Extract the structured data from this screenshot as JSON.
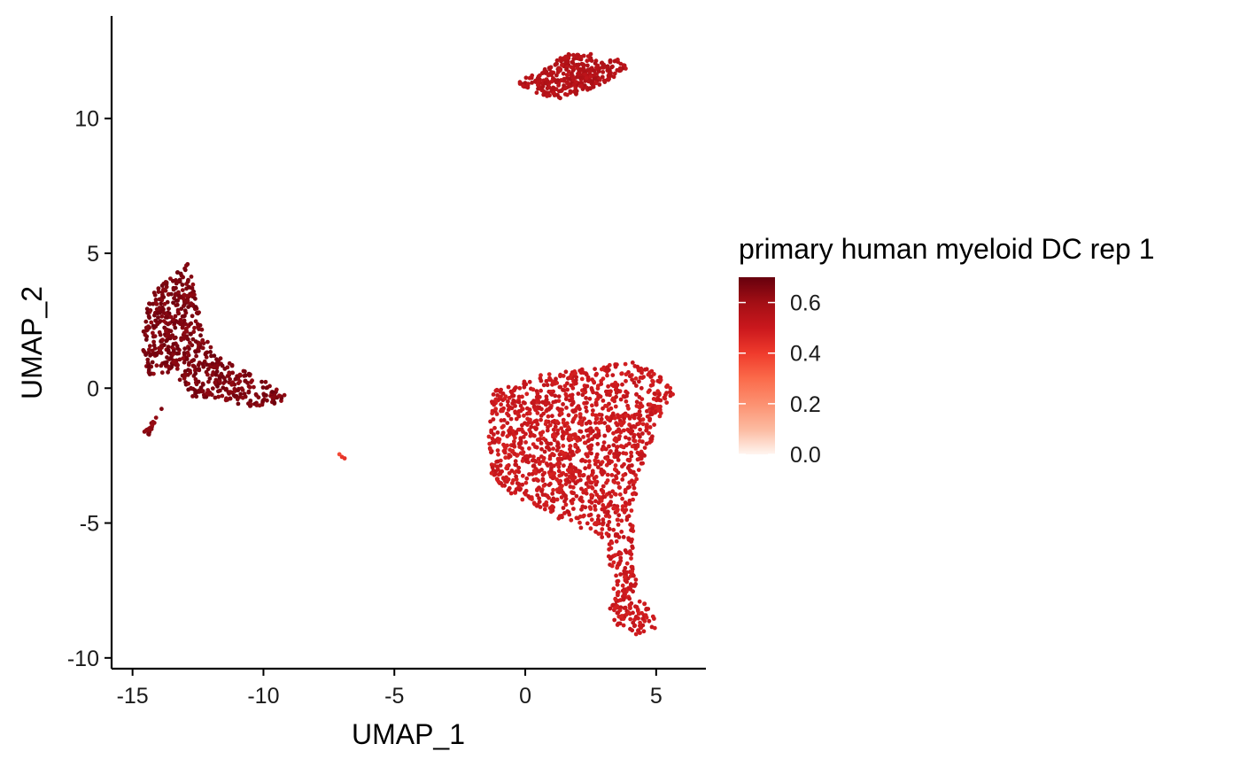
{
  "chart_data": {
    "type": "scatter",
    "title": "",
    "xlabel": "UMAP_1",
    "ylabel": "UMAP_2",
    "xlim": [
      -15.8,
      6.9
    ],
    "ylim": [
      -10.4,
      13.8
    ],
    "x_ticks": [
      -15,
      -10,
      -5,
      0,
      5
    ],
    "x_tick_labels": [
      "-15",
      "-10",
      "-5",
      "0",
      "5"
    ],
    "y_ticks": [
      -10,
      -5,
      0,
      5,
      10
    ],
    "y_tick_labels": [
      "-10",
      "-5",
      "0",
      "5",
      "10"
    ],
    "grid": false,
    "legend": {
      "title": "primary human myeloid DC rep 1",
      "placement": "right",
      "type": "colorbar",
      "range": [
        0.0,
        0.7
      ],
      "ticks": [
        0.0,
        0.2,
        0.4,
        0.6
      ],
      "tick_labels": [
        "0.0",
        "0.2",
        "0.4",
        "0.6"
      ],
      "colors": [
        "#fff5f0",
        "#fcbba1",
        "#fc9272",
        "#fb6a4a",
        "#ef3b2c",
        "#cb181d",
        "#a50f15",
        "#67000d"
      ]
    },
    "clusters": [
      {
        "description": "top cluster",
        "approx_cells": 350,
        "value": 0.56,
        "outline": [
          [
            -0.4,
            11.3
          ],
          [
            0.6,
            11.8
          ],
          [
            1.6,
            12.4
          ],
          [
            2.6,
            12.4
          ],
          [
            3.5,
            12.2
          ],
          [
            4.0,
            11.9
          ],
          [
            3.2,
            11.4
          ],
          [
            2.0,
            10.9
          ],
          [
            1.1,
            10.7
          ],
          [
            0.3,
            11.0
          ]
        ]
      },
      {
        "description": "left cluster",
        "approx_cells": 600,
        "value": 0.66,
        "outline": [
          [
            -14.6,
            2.5
          ],
          [
            -14.2,
            3.6
          ],
          [
            -13.4,
            4.2
          ],
          [
            -12.9,
            4.6
          ],
          [
            -12.5,
            3.4
          ],
          [
            -12.3,
            2.0
          ],
          [
            -11.8,
            1.2
          ],
          [
            -11.2,
            1.0
          ],
          [
            -10.6,
            0.6
          ],
          [
            -9.6,
            0.2
          ],
          [
            -9.1,
            -0.2
          ],
          [
            -9.4,
            -0.6
          ],
          [
            -10.6,
            -0.7
          ],
          [
            -11.8,
            -0.4
          ],
          [
            -12.8,
            -0.3
          ],
          [
            -13.4,
            0.6
          ],
          [
            -14.4,
            0.5
          ],
          [
            -14.6,
            1.3
          ]
        ]
      },
      {
        "description": "left cluster tail",
        "approx_cells": 20,
        "value": 0.64,
        "outline": [
          [
            -14.6,
            -1.6
          ],
          [
            -14.2,
            -1.2
          ],
          [
            -13.7,
            -0.5
          ],
          [
            -13.9,
            -0.7
          ],
          [
            -14.4,
            -1.8
          ]
        ]
      },
      {
        "description": "isolated cells",
        "approx_cells": 3,
        "value": 0.4,
        "points": [
          [
            -7.1,
            -2.45
          ],
          [
            -7.0,
            -2.55
          ],
          [
            -6.9,
            -2.6
          ]
        ]
      },
      {
        "description": "large lower-right cluster",
        "approx_cells": 1500,
        "value": 0.5,
        "outline": [
          [
            -1.4,
            -1.0
          ],
          [
            -1.2,
            -0.1
          ],
          [
            0.2,
            0.4
          ],
          [
            1.6,
            0.7
          ],
          [
            2.6,
            0.7
          ],
          [
            3.4,
            0.9
          ],
          [
            4.1,
            1.1
          ],
          [
            4.6,
            0.8
          ],
          [
            5.4,
            0.3
          ],
          [
            5.8,
            -0.2
          ],
          [
            5.2,
            -0.9
          ],
          [
            4.8,
            -2.0
          ],
          [
            4.4,
            -3.0
          ],
          [
            4.2,
            -4.2
          ],
          [
            4.1,
            -5.6
          ],
          [
            4.2,
            -6.8
          ],
          [
            4.4,
            -7.8
          ],
          [
            4.9,
            -8.4
          ],
          [
            5.0,
            -9.0
          ],
          [
            4.4,
            -9.2
          ],
          [
            3.6,
            -8.9
          ],
          [
            3.2,
            -8.3
          ],
          [
            3.4,
            -7.3
          ],
          [
            3.2,
            -6.4
          ],
          [
            3.0,
            -5.6
          ],
          [
            2.6,
            -5.3
          ],
          [
            2.0,
            -5.2
          ],
          [
            1.4,
            -4.9
          ],
          [
            0.5,
            -4.4
          ],
          [
            -0.2,
            -4.1
          ],
          [
            -0.7,
            -3.8
          ],
          [
            -1.3,
            -3.2
          ],
          [
            -1.4,
            -2.4
          ]
        ]
      }
    ]
  }
}
